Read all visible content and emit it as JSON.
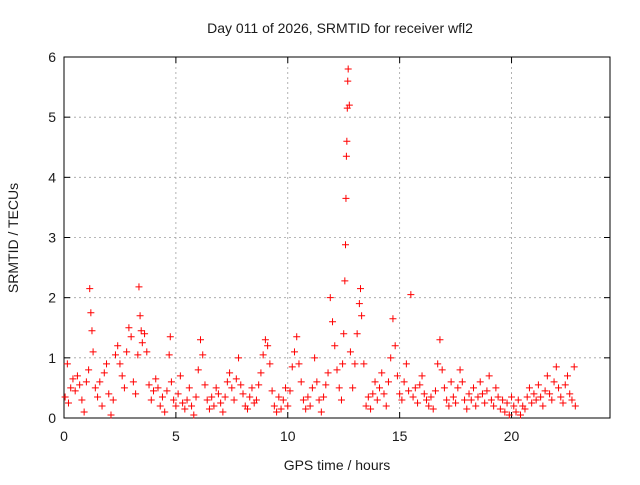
{
  "chart_data": {
    "type": "scatter",
    "title": "Day 011 of 2026, SRMTID for receiver wfl2",
    "xlabel": "GPS time / hours",
    "ylabel": "SRMTID / TECUs",
    "xlim": [
      0,
      24.4
    ],
    "ylim": [
      0,
      6
    ],
    "x_ticks": [
      0,
      5,
      10,
      15,
      20
    ],
    "x_tick_labels": [
      "0",
      "5",
      "10",
      "15",
      "20"
    ],
    "y_ticks": [
      0,
      1,
      2,
      3,
      4,
      5,
      6
    ],
    "y_tick_labels": [
      "0",
      "1",
      "2",
      "3",
      "4",
      "5",
      "6"
    ],
    "grid": true,
    "marker": "plus",
    "series": [
      {
        "name": "SRMTID",
        "color": "#ff0000",
        "points": [
          [
            0.05,
            0.35
          ],
          [
            0.15,
            0.9
          ],
          [
            0.2,
            0.25
          ],
          [
            0.3,
            0.5
          ],
          [
            0.4,
            0.65
          ],
          [
            0.5,
            0.45
          ],
          [
            0.6,
            0.7
          ],
          [
            0.7,
            0.55
          ],
          [
            0.8,
            0.3
          ],
          [
            0.9,
            0.1
          ],
          [
            1.0,
            0.6
          ],
          [
            1.1,
            0.8
          ],
          [
            1.15,
            2.15
          ],
          [
            1.2,
            1.75
          ],
          [
            1.25,
            1.45
          ],
          [
            1.3,
            1.1
          ],
          [
            1.4,
            0.5
          ],
          [
            1.5,
            0.35
          ],
          [
            1.6,
            0.6
          ],
          [
            1.7,
            0.2
          ],
          [
            1.8,
            0.75
          ],
          [
            1.9,
            0.9
          ],
          [
            2.0,
            0.4
          ],
          [
            2.1,
            0.05
          ],
          [
            2.2,
            0.3
          ],
          [
            2.3,
            1.05
          ],
          [
            2.4,
            1.2
          ],
          [
            2.5,
            0.9
          ],
          [
            2.6,
            0.7
          ],
          [
            2.7,
            0.5
          ],
          [
            2.8,
            1.1
          ],
          [
            2.9,
            1.5
          ],
          [
            3.0,
            1.35
          ],
          [
            3.1,
            0.6
          ],
          [
            3.2,
            0.4
          ],
          [
            3.3,
            1.05
          ],
          [
            3.35,
            2.18
          ],
          [
            3.4,
            1.7
          ],
          [
            3.45,
            1.45
          ],
          [
            3.5,
            1.25
          ],
          [
            3.6,
            1.4
          ],
          [
            3.7,
            1.1
          ],
          [
            3.8,
            0.55
          ],
          [
            3.9,
            0.3
          ],
          [
            4.0,
            0.45
          ],
          [
            4.1,
            0.65
          ],
          [
            4.2,
            0.5
          ],
          [
            4.3,
            0.2
          ],
          [
            4.4,
            0.35
          ],
          [
            4.5,
            0.1
          ],
          [
            4.6,
            0.45
          ],
          [
            4.7,
            1.05
          ],
          [
            4.75,
            1.35
          ],
          [
            4.8,
            0.6
          ],
          [
            4.9,
            0.3
          ],
          [
            5.0,
            0.2
          ],
          [
            5.1,
            0.4
          ],
          [
            5.2,
            0.7
          ],
          [
            5.3,
            0.25
          ],
          [
            5.4,
            0.15
          ],
          [
            5.5,
            0.3
          ],
          [
            5.6,
            0.5
          ],
          [
            5.7,
            0.2
          ],
          [
            5.8,
            0.05
          ],
          [
            5.9,
            0.35
          ],
          [
            6.0,
            0.8
          ],
          [
            6.1,
            1.3
          ],
          [
            6.2,
            1.05
          ],
          [
            6.3,
            0.55
          ],
          [
            6.4,
            0.3
          ],
          [
            6.5,
            0.15
          ],
          [
            6.6,
            0.35
          ],
          [
            6.7,
            0.2
          ],
          [
            6.8,
            0.5
          ],
          [
            6.9,
            0.4
          ],
          [
            7.0,
            0.25
          ],
          [
            7.1,
            0.1
          ],
          [
            7.2,
            0.35
          ],
          [
            7.3,
            0.6
          ],
          [
            7.4,
            0.75
          ],
          [
            7.5,
            0.5
          ],
          [
            7.6,
            0.3
          ],
          [
            7.7,
            0.65
          ],
          [
            7.8,
            1.0
          ],
          [
            7.9,
            0.55
          ],
          [
            8.0,
            0.4
          ],
          [
            8.1,
            0.2
          ],
          [
            8.2,
            0.15
          ],
          [
            8.3,
            0.35
          ],
          [
            8.4,
            0.5
          ],
          [
            8.5,
            0.25
          ],
          [
            8.6,
            0.3
          ],
          [
            8.7,
            0.55
          ],
          [
            8.8,
            0.75
          ],
          [
            8.9,
            1.05
          ],
          [
            9.0,
            1.3
          ],
          [
            9.1,
            1.2
          ],
          [
            9.2,
            0.9
          ],
          [
            9.3,
            0.45
          ],
          [
            9.4,
            0.2
          ],
          [
            9.5,
            0.1
          ],
          [
            9.6,
            0.35
          ],
          [
            9.7,
            0.15
          ],
          [
            9.8,
            0.3
          ],
          [
            9.9,
            0.5
          ],
          [
            10.0,
            0.2
          ],
          [
            10.1,
            0.45
          ],
          [
            10.2,
            0.85
          ],
          [
            10.3,
            1.1
          ],
          [
            10.4,
            1.35
          ],
          [
            10.5,
            0.9
          ],
          [
            10.6,
            0.6
          ],
          [
            10.7,
            0.3
          ],
          [
            10.8,
            0.15
          ],
          [
            10.9,
            0.35
          ],
          [
            11.0,
            0.2
          ],
          [
            11.1,
            0.5
          ],
          [
            11.2,
            1.0
          ],
          [
            11.3,
            0.6
          ],
          [
            11.4,
            0.3
          ],
          [
            11.5,
            0.1
          ],
          [
            11.6,
            0.35
          ],
          [
            11.7,
            0.55
          ],
          [
            11.8,
            0.75
          ],
          [
            11.9,
            2.0
          ],
          [
            12.0,
            1.6
          ],
          [
            12.1,
            1.2
          ],
          [
            12.2,
            0.8
          ],
          [
            12.3,
            0.5
          ],
          [
            12.4,
            0.3
          ],
          [
            12.45,
            0.9
          ],
          [
            12.5,
            1.4
          ],
          [
            12.55,
            2.28
          ],
          [
            12.58,
            2.88
          ],
          [
            12.6,
            3.65
          ],
          [
            12.62,
            4.35
          ],
          [
            12.64,
            4.6
          ],
          [
            12.66,
            5.15
          ],
          [
            12.68,
            5.6
          ],
          [
            12.7,
            5.8
          ],
          [
            12.75,
            5.2
          ],
          [
            12.8,
            1.1
          ],
          [
            12.9,
            0.5
          ],
          [
            13.0,
            0.9
          ],
          [
            13.1,
            1.4
          ],
          [
            13.2,
            1.9
          ],
          [
            13.25,
            2.15
          ],
          [
            13.3,
            1.7
          ],
          [
            13.4,
            0.9
          ],
          [
            13.5,
            0.2
          ],
          [
            13.6,
            0.35
          ],
          [
            13.7,
            0.15
          ],
          [
            13.8,
            0.4
          ],
          [
            13.9,
            0.6
          ],
          [
            14.0,
            0.3
          ],
          [
            14.1,
            0.5
          ],
          [
            14.2,
            0.75
          ],
          [
            14.3,
            0.4
          ],
          [
            14.4,
            0.2
          ],
          [
            14.5,
            0.6
          ],
          [
            14.6,
            1.0
          ],
          [
            14.7,
            1.65
          ],
          [
            14.8,
            1.2
          ],
          [
            14.9,
            0.7
          ],
          [
            15.0,
            0.4
          ],
          [
            15.1,
            0.3
          ],
          [
            15.2,
            0.6
          ],
          [
            15.3,
            0.9
          ],
          [
            15.4,
            0.45
          ],
          [
            15.5,
            2.05
          ],
          [
            15.6,
            0.35
          ],
          [
            15.7,
            0.5
          ],
          [
            15.8,
            0.25
          ],
          [
            15.9,
            0.55
          ],
          [
            16.0,
            0.7
          ],
          [
            16.1,
            0.4
          ],
          [
            16.2,
            0.3
          ],
          [
            16.3,
            0.2
          ],
          [
            16.4,
            0.35
          ],
          [
            16.5,
            0.15
          ],
          [
            16.6,
            0.45
          ],
          [
            16.7,
            0.9
          ],
          [
            16.8,
            1.3
          ],
          [
            16.9,
            0.8
          ],
          [
            17.0,
            0.5
          ],
          [
            17.1,
            0.3
          ],
          [
            17.2,
            0.2
          ],
          [
            17.3,
            0.6
          ],
          [
            17.4,
            0.35
          ],
          [
            17.5,
            0.25
          ],
          [
            17.6,
            0.5
          ],
          [
            17.7,
            0.8
          ],
          [
            17.8,
            0.6
          ],
          [
            17.9,
            0.3
          ],
          [
            18.0,
            0.15
          ],
          [
            18.1,
            0.4
          ],
          [
            18.2,
            0.3
          ],
          [
            18.3,
            0.5
          ],
          [
            18.4,
            0.2
          ],
          [
            18.5,
            0.35
          ],
          [
            18.6,
            0.6
          ],
          [
            18.7,
            0.4
          ],
          [
            18.8,
            0.25
          ],
          [
            18.9,
            0.45
          ],
          [
            19.0,
            0.7
          ],
          [
            19.1,
            0.3
          ],
          [
            19.2,
            0.2
          ],
          [
            19.3,
            0.5
          ],
          [
            19.4,
            0.35
          ],
          [
            19.5,
            0.15
          ],
          [
            19.6,
            0.3
          ],
          [
            19.7,
            0.1
          ],
          [
            19.8,
            0.25
          ],
          [
            19.9,
            0.05
          ],
          [
            20.0,
            0.35
          ],
          [
            20.1,
            0.2
          ],
          [
            20.2,
            0.1
          ],
          [
            20.3,
            0.3
          ],
          [
            20.4,
            0.05
          ],
          [
            20.5,
            0.2
          ],
          [
            20.6,
            0.15
          ],
          [
            20.7,
            0.35
          ],
          [
            20.8,
            0.5
          ],
          [
            20.9,
            0.25
          ],
          [
            21.0,
            0.4
          ],
          [
            21.1,
            0.3
          ],
          [
            21.2,
            0.55
          ],
          [
            21.3,
            0.35
          ],
          [
            21.4,
            0.2
          ],
          [
            21.5,
            0.45
          ],
          [
            21.6,
            0.7
          ],
          [
            21.7,
            0.4
          ],
          [
            21.8,
            0.3
          ],
          [
            21.9,
            0.6
          ],
          [
            22.0,
            0.85
          ],
          [
            22.1,
            0.5
          ],
          [
            22.2,
            0.35
          ],
          [
            22.3,
            0.25
          ],
          [
            22.4,
            0.55
          ],
          [
            22.5,
            0.7
          ],
          [
            22.6,
            0.4
          ],
          [
            22.7,
            0.3
          ],
          [
            22.8,
            0.85
          ],
          [
            22.85,
            0.2
          ]
        ]
      }
    ]
  }
}
